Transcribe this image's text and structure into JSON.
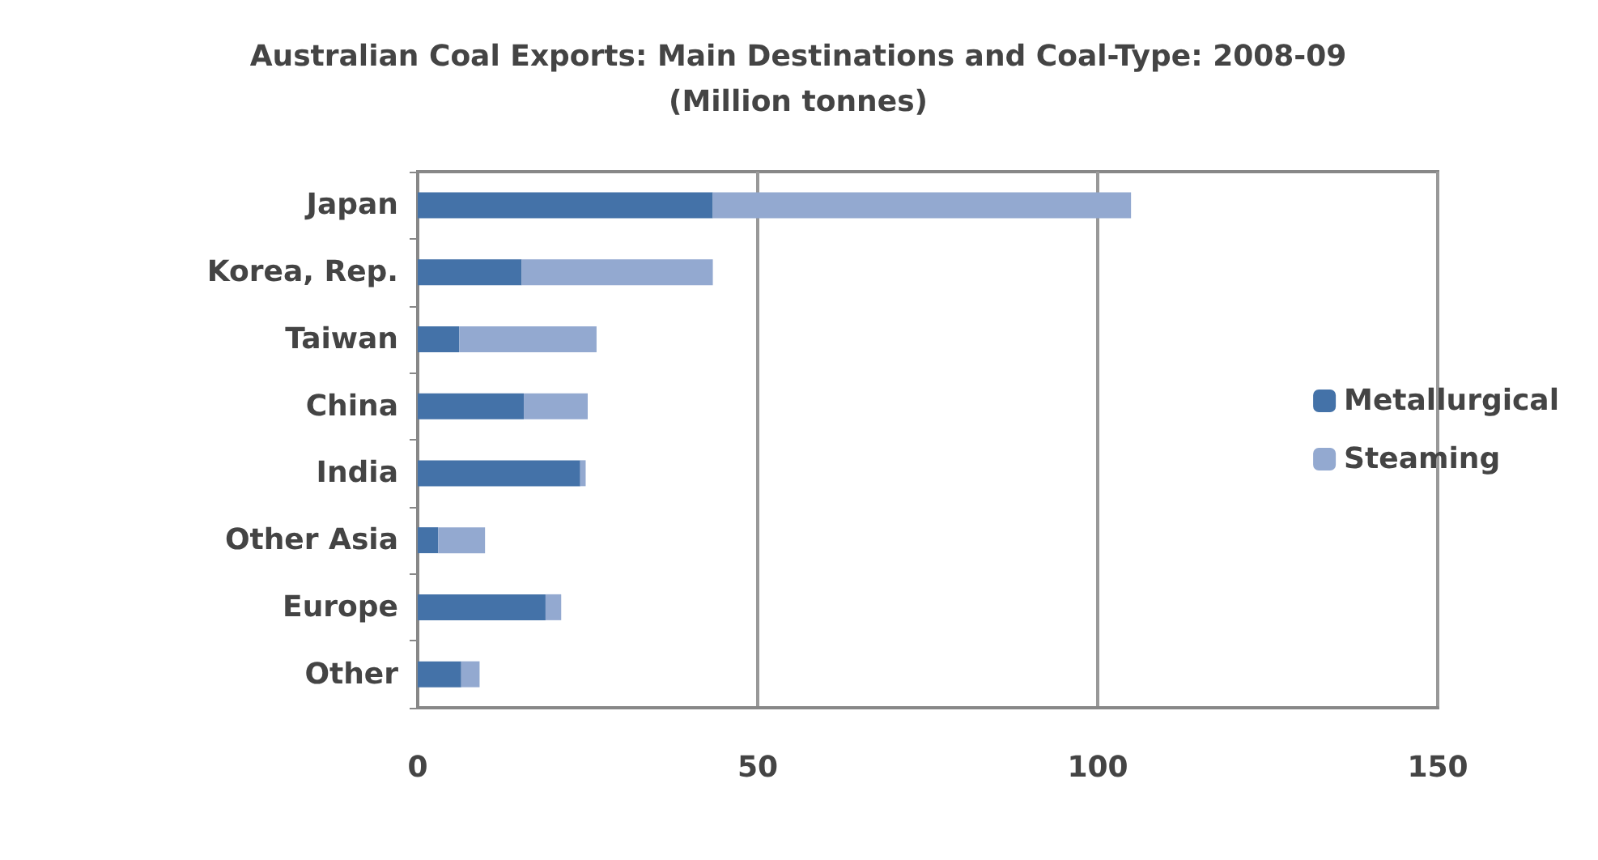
{
  "chart_data": {
    "type": "bar",
    "orientation": "horizontal",
    "stacked": true,
    "title": "Australian Coal Exports: Main Destinations and Coal-Type: 2008-09\n(Million tonnes)",
    "categories": [
      "Japan",
      "Korea, Rep.",
      "Taiwan",
      "China",
      "India",
      "Other Asia",
      "Europe",
      "Other"
    ],
    "series": [
      {
        "name": "Metallurgical",
        "color": "#4472a8",
        "values": [
          43.4,
          15.3,
          6.1,
          15.6,
          23.9,
          3.0,
          18.8,
          6.4
        ]
      },
      {
        "name": "Steaming",
        "color": "#93a9d0",
        "values": [
          61.5,
          28.1,
          20.2,
          9.4,
          0.8,
          6.9,
          2.3,
          2.7
        ]
      }
    ],
    "xlim": [
      0,
      150
    ],
    "xticks": [
      0,
      50,
      100,
      150
    ],
    "grid": "x",
    "legend": "right"
  }
}
